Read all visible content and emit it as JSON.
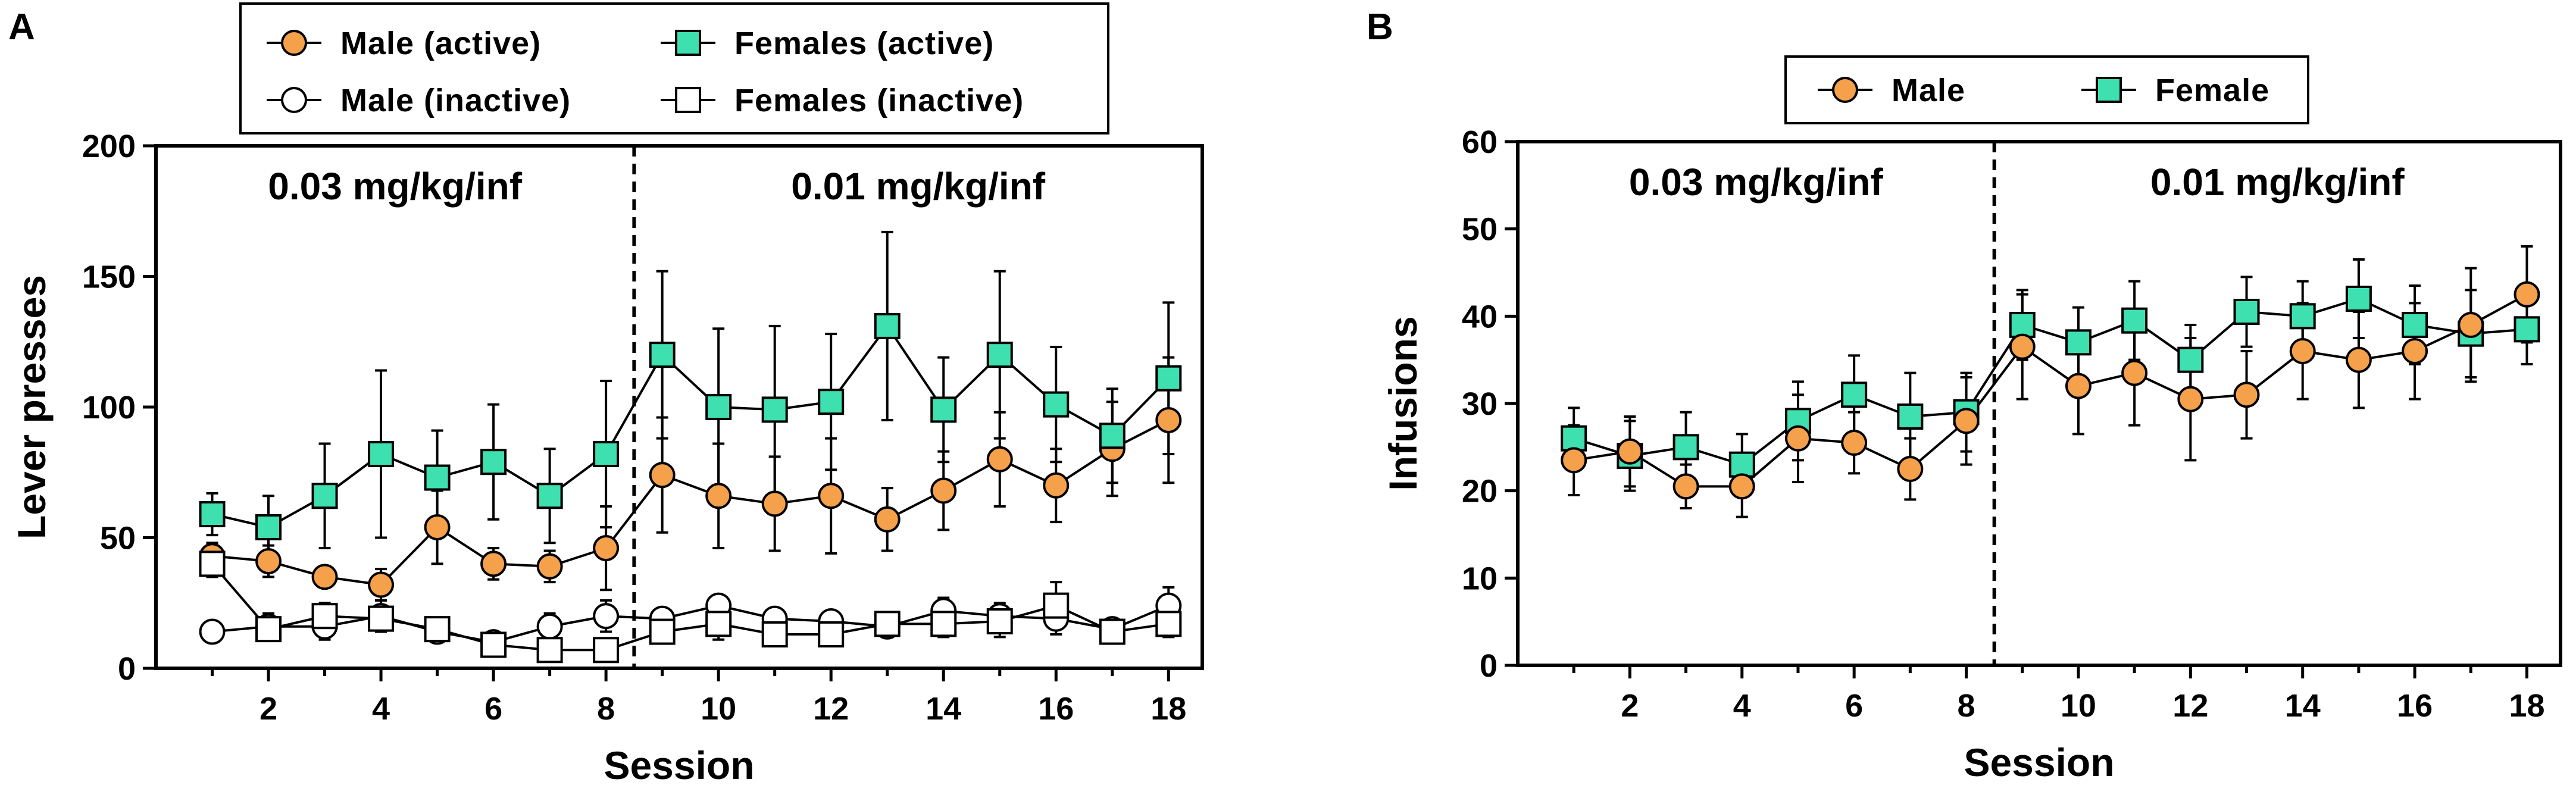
{
  "colors": {
    "male": "#f5a04b",
    "female": "#3ee0b0",
    "inactive": "#ffffff",
    "stroke": "#000000"
  },
  "chart_data": [
    {
      "panel": "A",
      "type": "line",
      "xlabel": "Session",
      "ylabel": "Lever presses",
      "xlim": [
        0,
        18.6
      ],
      "ylim": [
        0,
        200
      ],
      "xticks": [
        2,
        4,
        6,
        8,
        10,
        12,
        14,
        16,
        18
      ],
      "xticks_minor": [
        1,
        3,
        5,
        7,
        9,
        11,
        13,
        15,
        17
      ],
      "yticks": [
        0,
        50,
        100,
        150,
        200
      ],
      "divider_x": 8.5,
      "phase_labels": [
        "0.03 mg/kg/inf",
        "0.01 mg/kg/inf"
      ],
      "x": [
        1,
        2,
        3,
        4,
        5,
        6,
        7,
        8,
        9,
        10,
        11,
        12,
        13,
        14,
        15,
        16,
        17,
        18
      ],
      "legend": {
        "columns": 2,
        "placement": "top"
      },
      "series": [
        {
          "name": "Male (active)",
          "marker": "circle",
          "fill": "male",
          "values": [
            43,
            41,
            35,
            32,
            54,
            40,
            39,
            46,
            74,
            66,
            63,
            66,
            57,
            68,
            80,
            70,
            84,
            95
          ],
          "errors": [
            5,
            6,
            4,
            6,
            14,
            6,
            6,
            16,
            22,
            20,
            18,
            22,
            12,
            15,
            18,
            14,
            18,
            24
          ]
        },
        {
          "name": "Male (inactive)",
          "marker": "circle",
          "fill": "inactive",
          "values": [
            14,
            16,
            16,
            20,
            14,
            10,
            16,
            20,
            19,
            24,
            19,
            18,
            16,
            22,
            20,
            19,
            15,
            24
          ],
          "errors": [
            3,
            5,
            5,
            6,
            3,
            3,
            5,
            6,
            4,
            4,
            4,
            3,
            4,
            5,
            5,
            6,
            3,
            7
          ]
        },
        {
          "name": "Females (active)",
          "marker": "square",
          "fill": "female",
          "values": [
            59,
            54,
            66,
            82,
            73,
            79,
            66,
            82,
            120,
            100,
            99,
            102,
            131,
            99,
            120,
            101,
            89,
            111
          ],
          "errors": [
            8,
            12,
            20,
            32,
            18,
            22,
            18,
            28,
            32,
            30,
            32,
            26,
            36,
            20,
            32,
            22,
            18,
            29
          ]
        },
        {
          "name": "Females (inactive)",
          "marker": "square",
          "fill": "inactive",
          "values": [
            40,
            15,
            20,
            19,
            15,
            9,
            7,
            7,
            14,
            17,
            13,
            13,
            17,
            17,
            18,
            24,
            14,
            17
          ],
          "errors": [
            5,
            4,
            5,
            5,
            4,
            3,
            2,
            2,
            4,
            6,
            4,
            4,
            4,
            5,
            6,
            9,
            3,
            5
          ]
        }
      ]
    },
    {
      "panel": "B",
      "type": "line",
      "xlabel": "Session",
      "ylabel": "Infusions",
      "xlim": [
        0,
        18.6
      ],
      "ylim": [
        0,
        60
      ],
      "xticks": [
        2,
        4,
        6,
        8,
        10,
        12,
        14,
        16,
        18
      ],
      "xticks_minor": [
        1,
        3,
        5,
        7,
        9,
        11,
        13,
        15,
        17
      ],
      "yticks": [
        0,
        10,
        20,
        30,
        40,
        50,
        60
      ],
      "divider_x": 8.5,
      "phase_labels": [
        "0.03 mg/kg/inf",
        "0.01 mg/kg/inf"
      ],
      "x": [
        1,
        2,
        3,
        4,
        5,
        6,
        7,
        8,
        9,
        10,
        11,
        12,
        13,
        14,
        15,
        16,
        17,
        18
      ],
      "legend": {
        "columns": 2,
        "placement": "top"
      },
      "series": [
        {
          "name": "Female",
          "marker": "square",
          "fill": "female",
          "values": [
            26,
            24,
            25,
            23,
            28,
            31,
            28.5,
            29,
            39,
            37,
            39.5,
            35,
            40.5,
            40,
            42,
            39,
            38,
            38.5
          ],
          "errors": [
            3.5,
            4,
            4,
            3.5,
            4.5,
            4.5,
            5,
            4.5,
            4,
            4,
            4.5,
            4,
            4,
            4,
            4.5,
            4.5,
            5,
            4
          ]
        },
        {
          "name": "Male",
          "marker": "circle",
          "fill": "male",
          "values": [
            23.5,
            24.5,
            20.5,
            20.5,
            26,
            25.5,
            22.5,
            28,
            36.5,
            32,
            33.5,
            30.5,
            31,
            36,
            35,
            36,
            39,
            42.5
          ],
          "errors": [
            4,
            4,
            2.5,
            3.5,
            5,
            3.5,
            3.5,
            5,
            6,
            5.5,
            6,
            7,
            5,
            5.5,
            5.5,
            5.5,
            6.5,
            5.5
          ]
        }
      ],
      "legend_order": [
        "Male",
        "Female"
      ]
    }
  ]
}
